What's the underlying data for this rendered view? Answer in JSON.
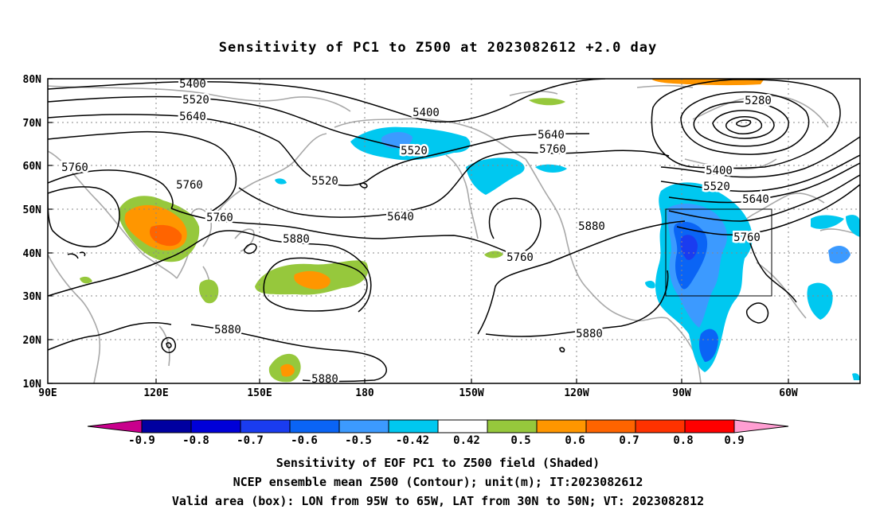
{
  "title": "Sensitivity of PC1 to Z500 at 2023082612 +2.0 day",
  "map": {
    "lat_labels": [
      "80N",
      "70N",
      "60N",
      "50N",
      "40N",
      "30N",
      "20N",
      "10N"
    ],
    "lon_labels": [
      "90E",
      "120E",
      "150E",
      "180",
      "150W",
      "120W",
      "90W",
      "60W"
    ],
    "contour_labels": [
      {
        "text": "5400"
      },
      {
        "text": "5520"
      },
      {
        "text": "5640"
      },
      {
        "text": "5760"
      },
      {
        "text": "5760"
      },
      {
        "text": "5760"
      },
      {
        "text": "5880"
      },
      {
        "text": "5880"
      },
      {
        "text": "5880"
      },
      {
        "text": "5400"
      },
      {
        "text": "5520"
      },
      {
        "text": "5520"
      },
      {
        "text": "5640"
      },
      {
        "text": "5640"
      },
      {
        "text": "5760"
      },
      {
        "text": "5760"
      },
      {
        "text": "5880"
      },
      {
        "text": "5880"
      },
      {
        "text": "5280"
      },
      {
        "text": "5400"
      },
      {
        "text": "5520"
      },
      {
        "text": "5640"
      },
      {
        "text": "5760"
      }
    ],
    "valid_area": {
      "lon": [
        "95W",
        "65W"
      ],
      "lat": [
        "30N",
        "50N"
      ]
    }
  },
  "colorbar": {
    "labels": [
      "-0.9",
      "-0.8",
      "-0.7",
      "-0.6",
      "-0.5",
      "-0.42",
      "0.42",
      "0.5",
      "0.6",
      "0.7",
      "0.8",
      "0.9"
    ],
    "colors": [
      "#c8008c",
      "#0000a0",
      "#0000d8",
      "#1a3cf0",
      "#0a64f5",
      "#3c9aff",
      "#00c8f0",
      "#ffffff",
      "#96c83c",
      "#ff9600",
      "#ff6400",
      "#ff3200",
      "#ff0000",
      "#ff9ed2"
    ]
  },
  "footer": {
    "line1": "Sensitivity of EOF PC1 to Z500 field (Shaded)",
    "line2": "NCEP ensemble mean Z500 (Contour); unit(m); IT:2023082612",
    "line3": "Valid area (box): LON from 95W to 65W, LAT from 30N to 50N; VT: 2023082812"
  }
}
